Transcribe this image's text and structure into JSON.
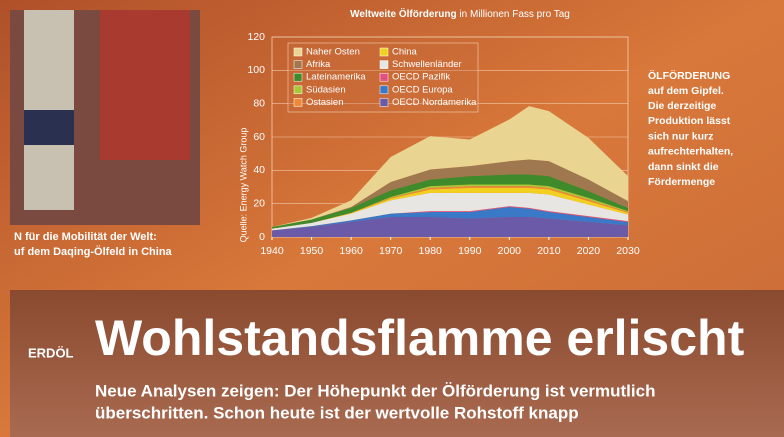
{
  "chart_data": {
    "type": "stacked_area",
    "title": "Weltweite Ölförderung",
    "subtitle": "in Millionen Fass pro Tag",
    "source": "Quelle: Energy Watch Group",
    "x": [
      1940,
      1950,
      1960,
      1970,
      1980,
      1990,
      2000,
      2005,
      2010,
      2020,
      2030
    ],
    "series": [
      {
        "name": "OECD Nordamerika",
        "color": "#6a5aa8",
        "values": [
          4,
          6,
          9,
          12,
          12,
          11,
          12,
          12,
          11,
          9,
          7
        ]
      },
      {
        "name": "OECD Europa",
        "color": "#3a78c8",
        "values": [
          0,
          0.5,
          1,
          2,
          3,
          4,
          6,
          5,
          4,
          3,
          2
        ]
      },
      {
        "name": "OECD Pazifik",
        "color": "#e05080",
        "values": [
          0,
          0,
          0,
          0,
          0.5,
          0.5,
          0.5,
          0.5,
          0.5,
          0.5,
          0.5
        ]
      },
      {
        "name": "Schwellenländer",
        "color": "#e8e6e2",
        "values": [
          1,
          2,
          4,
          8,
          11,
          11,
          8,
          9,
          10,
          7,
          4
        ]
      },
      {
        "name": "China",
        "color": "#f2d020",
        "values": [
          0,
          0,
          0.5,
          1,
          2,
          3,
          3,
          3,
          3,
          2,
          1
        ]
      },
      {
        "name": "Ostasien",
        "color": "#ec8a38",
        "values": [
          0,
          0,
          0,
          0.5,
          1,
          1,
          1,
          1,
          1,
          1,
          0.5
        ]
      },
      {
        "name": "Südasien",
        "color": "#a8c838",
        "values": [
          0,
          0,
          0,
          0.5,
          1,
          1,
          1,
          1,
          1,
          1,
          0.5
        ]
      },
      {
        "name": "Lateinamerika",
        "color": "#3f8a2a",
        "values": [
          1,
          2,
          3,
          4,
          4,
          5,
          6,
          6,
          6,
          4,
          2
        ]
      },
      {
        "name": "Afrika",
        "color": "#a07850",
        "values": [
          0,
          0,
          0.5,
          5,
          6,
          6,
          8,
          9,
          9,
          7,
          4
        ]
      },
      {
        "name": "Naher Osten",
        "color": "#ead492",
        "values": [
          0,
          1,
          4,
          15,
          20,
          16,
          25,
          32,
          30,
          25,
          15
        ]
      }
    ],
    "xlim": [
      1940,
      2030
    ],
    "xticks": [
      1940,
      1950,
      1960,
      1970,
      1980,
      1990,
      2000,
      2010,
      2020,
      2030
    ],
    "ylim": [
      0,
      120
    ],
    "yticks": [
      0,
      20,
      40,
      60,
      80,
      100,
      120
    ],
    "grid": true,
    "legend": "top-left"
  },
  "photo_caption": [
    "N für die Mobilität der Welt:",
    "uf dem Daqing-Ölfeld in China"
  ],
  "sidebar": {
    "heading": "ÖLFÖRDERUNG",
    "lines": [
      "auf dem Gipfel.",
      "Die derzeitige",
      "Produktion lässt",
      "sich nur kurz",
      "aufrechterhalten,",
      "dann sinkt die",
      "Fördermenge"
    ]
  },
  "article": {
    "kicker": "ERDÖL",
    "headline": "Wohlstandsflamme erlischt",
    "deck": [
      "Neue Analysen zeigen: Der Höhepunkt der Ölförderung ist vermutlich",
      "überschritten. Schon heute ist der wertvolle Rohstoff knapp"
    ]
  }
}
